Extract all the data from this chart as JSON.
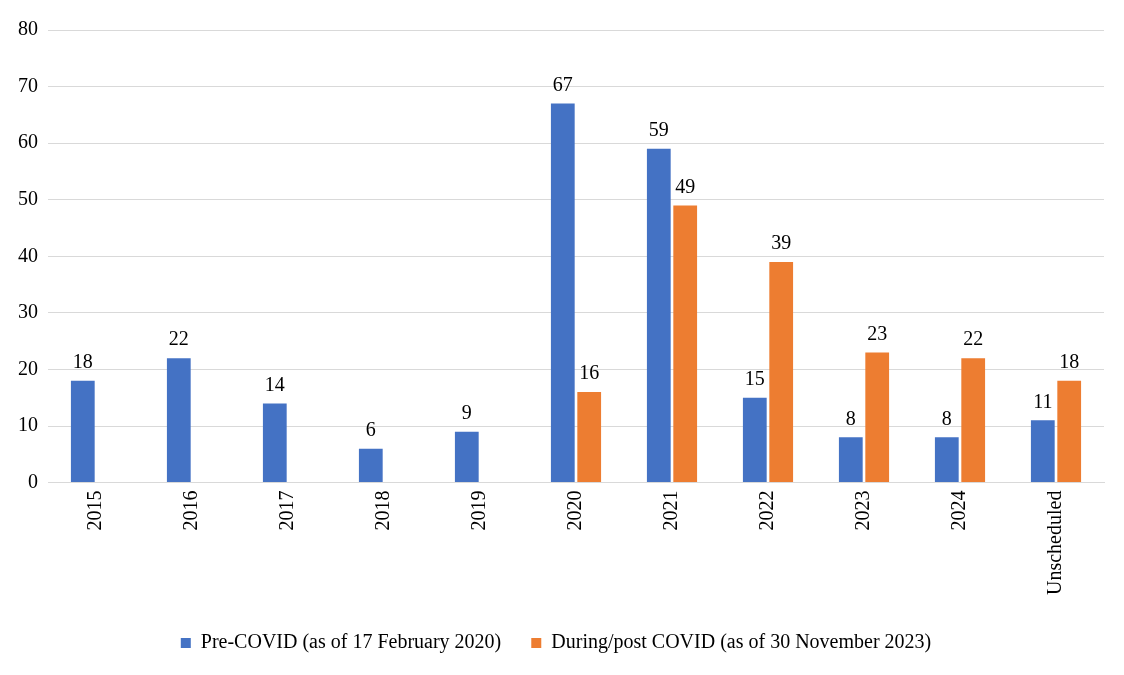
{
  "chart_data": {
    "type": "bar",
    "categories": [
      "2015",
      "2016",
      "2017",
      "2018",
      "2019",
      "2020",
      "2021",
      "2022",
      "2023",
      "2024",
      "Unscheduled"
    ],
    "series": [
      {
        "name": "Pre-COVID (as of 17 February 2020)",
        "color": "#4472c4",
        "values": [
          18,
          22,
          14,
          6,
          9,
          67,
          59,
          15,
          8,
          8,
          11
        ]
      },
      {
        "name": "During/post COVID (as of 30 November 2023)",
        "color": "#ed7d31",
        "values": [
          null,
          null,
          null,
          null,
          null,
          16,
          49,
          39,
          23,
          22,
          18
        ]
      }
    ],
    "ylim": [
      0,
      80
    ],
    "yticks": [
      0,
      10,
      20,
      30,
      40,
      50,
      60,
      70,
      80
    ],
    "grid": "y",
    "legend": "bottom",
    "data_labels": true
  }
}
